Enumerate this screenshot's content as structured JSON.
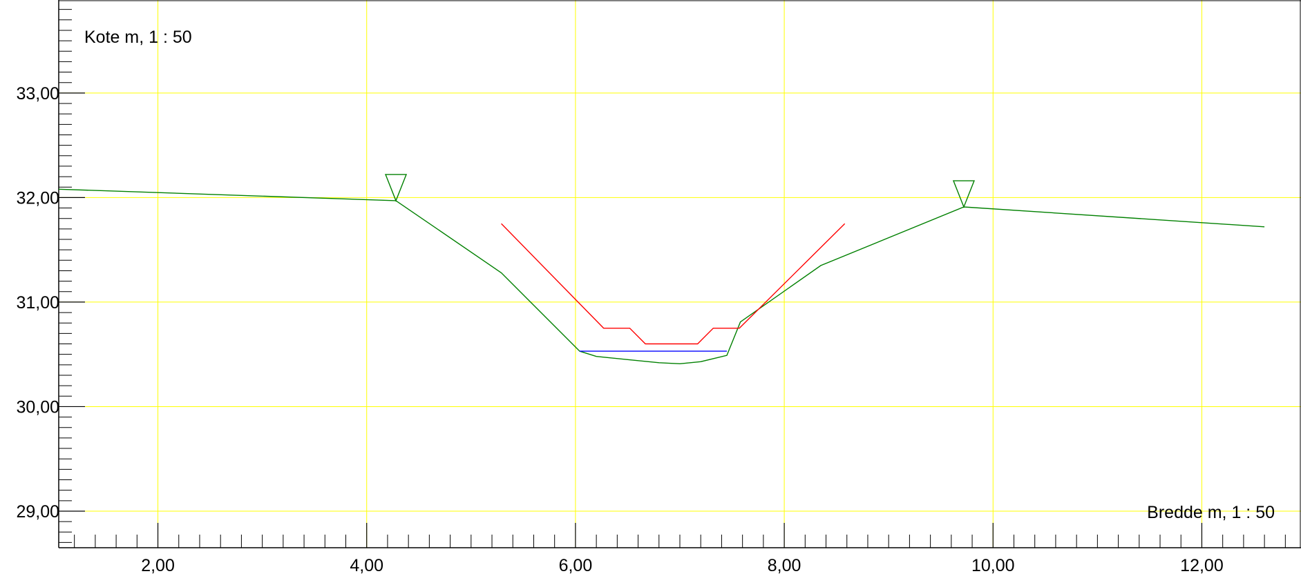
{
  "chart_data": {
    "type": "line",
    "ylabel": "Kote m, 1 : 50",
    "xlabel": "Bredde m, 1 : 50",
    "xlim": [
      1.05,
      12.95
    ],
    "ylim": [
      28.65,
      33.89
    ],
    "grid": true,
    "colors": {
      "grid": "#ffff00",
      "terrain": "#008000",
      "design": "#ff0000",
      "water": "#0000ff",
      "axis": "#000000"
    },
    "x_ticks": [
      "2,00",
      "4,00",
      "6,00",
      "8,00",
      "10,00",
      "12,00"
    ],
    "x_tick_values": [
      2,
      4,
      6,
      8,
      10,
      12
    ],
    "y_ticks": [
      "29,00",
      "30,00",
      "31,00",
      "32,00",
      "33,00"
    ],
    "y_tick_values": [
      29,
      30,
      31,
      32,
      33
    ],
    "series": [
      {
        "key": "terrain",
        "points": [
          [
            1.05,
            32.08
          ],
          [
            4.28,
            31.97
          ],
          [
            5.29,
            31.28
          ],
          [
            6.04,
            30.53
          ],
          [
            6.2,
            30.48
          ],
          [
            6.5,
            30.45
          ],
          [
            6.8,
            30.42
          ],
          [
            7.0,
            30.41
          ],
          [
            7.2,
            30.43
          ],
          [
            7.45,
            30.49
          ],
          [
            7.58,
            30.81
          ],
          [
            8.35,
            31.35
          ],
          [
            9.72,
            31.91
          ],
          [
            12.6,
            31.72
          ]
        ]
      },
      {
        "key": "design",
        "points": [
          [
            5.29,
            31.75
          ],
          [
            6.27,
            30.75
          ],
          [
            6.52,
            30.75
          ],
          [
            6.67,
            30.6
          ],
          [
            7.17,
            30.6
          ],
          [
            7.32,
            30.75
          ],
          [
            7.57,
            30.75
          ],
          [
            8.58,
            31.75
          ]
        ]
      },
      {
        "key": "water",
        "points": [
          [
            6.04,
            30.53
          ],
          [
            7.45,
            30.53
          ]
        ]
      }
    ],
    "markers": [
      {
        "type": "triangle-down",
        "x": 4.28,
        "y": 31.97
      },
      {
        "type": "triangle-down",
        "x": 9.72,
        "y": 31.91
      }
    ]
  }
}
